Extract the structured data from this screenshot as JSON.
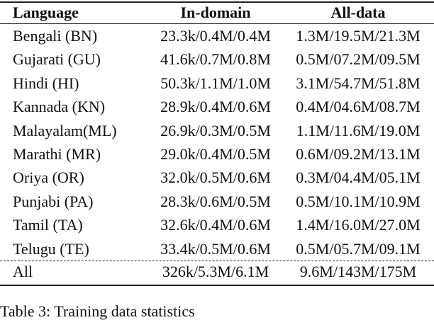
{
  "table": {
    "header": [
      "Language",
      "In-domain",
      "All-data"
    ],
    "rows": [
      [
        "Bengali (BN)",
        "23.3k/0.4M/0.4M",
        "1.3M/19.5M/21.3M"
      ],
      [
        "Gujarati (GU)",
        "41.6k/0.7M/0.8M",
        "0.5M/07.2M/09.5M"
      ],
      [
        "Hindi (HI)",
        "50.3k/1.1M/1.0M",
        "3.1M/54.7M/51.8M"
      ],
      [
        "Kannada (KN)",
        "28.9k/0.4M/0.6M",
        "0.4M/04.6M/08.7M"
      ],
      [
        "Malayalam(ML)",
        "26.9k/0.3M/0.5M",
        "1.1M/11.6M/19.0M"
      ],
      [
        "Marathi (MR)",
        "29.0k/0.4M/0.5M",
        "0.6M/09.2M/13.1M"
      ],
      [
        "Oriya (OR)",
        "32.0k/0.5M/0.6M",
        "0.3M/04.4M/05.1M"
      ],
      [
        "Punjabi (PA)",
        "28.3k/0.6M/0.5M",
        "0.5M/10.1M/10.9M"
      ],
      [
        "Tamil (TA)",
        "32.6k/0.4M/0.6M",
        "1.4M/16.0M/27.0M"
      ],
      [
        "Telugu (TE)",
        "33.4k/0.5M/0.6M",
        "0.5M/05.7M/09.1M"
      ]
    ],
    "total": [
      "All",
      "326k/5.3M/6.1M",
      "9.6M/143M/175M"
    ]
  },
  "caption": "Table 3: Training data statistics"
}
